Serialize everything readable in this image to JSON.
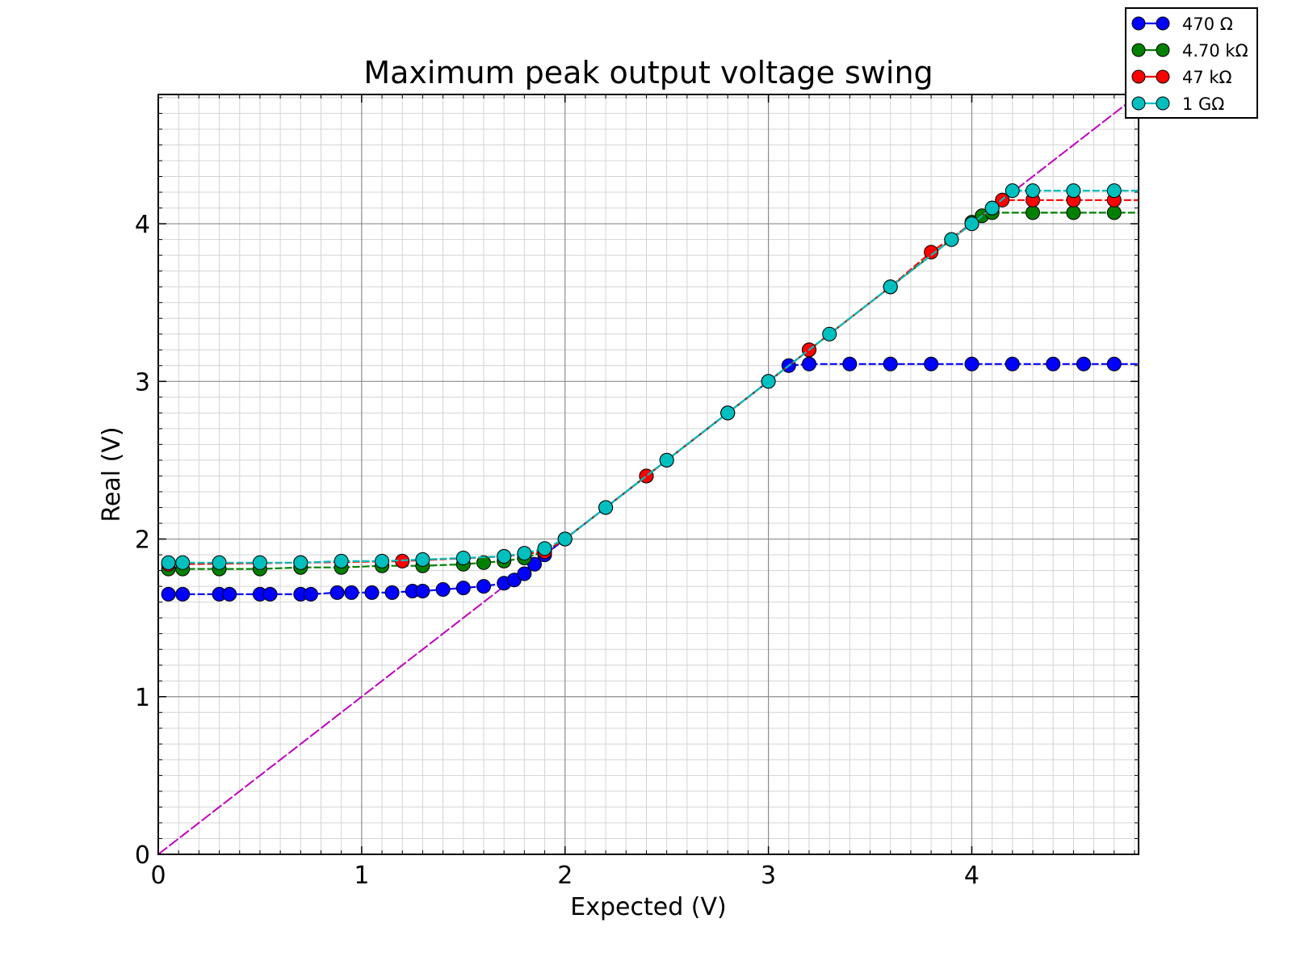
{
  "chart_data": {
    "type": "line",
    "title": "Maximum peak output voltage swing",
    "xlabel": "Expected (V)",
    "ylabel": "Real (V)",
    "xlim": [
      0,
      4.82
    ],
    "ylim": [
      0,
      4.82
    ],
    "x_ticks": [
      0,
      1,
      2,
      3,
      4
    ],
    "y_ticks": [
      0,
      1,
      2,
      3,
      4
    ],
    "x_tick_labels": [
      "0",
      "1",
      "2",
      "3",
      "4"
    ],
    "y_tick_labels": [
      "0",
      "1",
      "2",
      "3",
      "4"
    ],
    "major_grid": true,
    "minor_grid": true,
    "legend_position": "top-right, outside plot",
    "reference_line": {
      "description": "ideal y = x",
      "color": "#bf00bf",
      "style": "dashed"
    },
    "series": [
      {
        "name": "470 Ω",
        "color": "#0000ff",
        "points": [
          [
            0.05,
            1.65
          ],
          [
            0.12,
            1.65
          ],
          [
            0.3,
            1.65
          ],
          [
            0.35,
            1.65
          ],
          [
            0.5,
            1.65
          ],
          [
            0.55,
            1.65
          ],
          [
            0.7,
            1.65
          ],
          [
            0.75,
            1.65
          ],
          [
            0.88,
            1.66
          ],
          [
            0.95,
            1.66
          ],
          [
            1.05,
            1.66
          ],
          [
            1.15,
            1.66
          ],
          [
            1.25,
            1.67
          ],
          [
            1.3,
            1.67
          ],
          [
            1.4,
            1.68
          ],
          [
            1.5,
            1.69
          ],
          [
            1.6,
            1.7
          ],
          [
            1.7,
            1.72
          ],
          [
            1.75,
            1.74
          ],
          [
            1.8,
            1.78
          ],
          [
            1.85,
            1.84
          ],
          [
            1.9,
            1.9
          ],
          [
            2.0,
            2.0
          ],
          [
            2.2,
            2.2
          ],
          [
            2.5,
            2.5
          ],
          [
            2.8,
            2.8
          ],
          [
            3.0,
            3.0
          ],
          [
            3.1,
            3.1
          ],
          [
            3.2,
            3.11
          ],
          [
            3.4,
            3.11
          ],
          [
            3.6,
            3.11
          ],
          [
            3.8,
            3.11
          ],
          [
            4.0,
            3.11
          ],
          [
            4.2,
            3.11
          ],
          [
            4.4,
            3.11
          ],
          [
            4.55,
            3.11
          ],
          [
            4.7,
            3.11
          ],
          [
            4.82,
            3.11
          ]
        ]
      },
      {
        "name": "4.70 kΩ",
        "color": "#008000",
        "points": [
          [
            0.05,
            1.81
          ],
          [
            0.12,
            1.81
          ],
          [
            0.3,
            1.81
          ],
          [
            0.5,
            1.81
          ],
          [
            0.7,
            1.82
          ],
          [
            0.9,
            1.82
          ],
          [
            1.1,
            1.83
          ],
          [
            1.3,
            1.83
          ],
          [
            1.5,
            1.84
          ],
          [
            1.6,
            1.85
          ],
          [
            1.7,
            1.86
          ],
          [
            1.8,
            1.88
          ],
          [
            1.9,
            1.92
          ],
          [
            2.0,
            2.0
          ],
          [
            2.4,
            2.4
          ],
          [
            2.8,
            2.8
          ],
          [
            3.2,
            3.2
          ],
          [
            3.6,
            3.6
          ],
          [
            3.9,
            3.9
          ],
          [
            4.0,
            4.01
          ],
          [
            4.05,
            4.05
          ],
          [
            4.1,
            4.07
          ],
          [
            4.3,
            4.07
          ],
          [
            4.5,
            4.07
          ],
          [
            4.7,
            4.07
          ],
          [
            4.82,
            4.07
          ]
        ]
      },
      {
        "name": "47 kΩ",
        "color": "#ff0000",
        "points": [
          [
            0.05,
            1.84
          ],
          [
            0.7,
            1.85
          ],
          [
            1.2,
            1.86
          ],
          [
            1.7,
            1.89
          ],
          [
            1.9,
            1.92
          ],
          [
            2.0,
            2.0
          ],
          [
            2.4,
            2.4
          ],
          [
            2.8,
            2.8
          ],
          [
            3.2,
            3.2
          ],
          [
            3.6,
            3.6
          ],
          [
            3.8,
            3.82
          ],
          [
            4.0,
            4.0
          ],
          [
            4.1,
            4.1
          ],
          [
            4.15,
            4.15
          ],
          [
            4.3,
            4.15
          ],
          [
            4.5,
            4.15
          ],
          [
            4.7,
            4.15
          ],
          [
            4.82,
            4.15
          ]
        ]
      },
      {
        "name": "1 GΩ",
        "color": "#00bfbf",
        "points": [
          [
            0.05,
            1.85
          ],
          [
            0.12,
            1.85
          ],
          [
            0.3,
            1.85
          ],
          [
            0.5,
            1.85
          ],
          [
            0.7,
            1.85
          ],
          [
            0.9,
            1.86
          ],
          [
            1.1,
            1.86
          ],
          [
            1.3,
            1.87
          ],
          [
            1.5,
            1.88
          ],
          [
            1.7,
            1.89
          ],
          [
            1.8,
            1.91
          ],
          [
            1.9,
            1.94
          ],
          [
            2.0,
            2.0
          ],
          [
            2.2,
            2.2
          ],
          [
            2.5,
            2.5
          ],
          [
            2.8,
            2.8
          ],
          [
            3.0,
            3.0
          ],
          [
            3.3,
            3.3
          ],
          [
            3.6,
            3.6
          ],
          [
            3.9,
            3.9
          ],
          [
            4.0,
            4.0
          ],
          [
            4.1,
            4.1
          ],
          [
            4.2,
            4.21
          ],
          [
            4.3,
            4.21
          ],
          [
            4.5,
            4.21
          ],
          [
            4.7,
            4.21
          ],
          [
            4.82,
            4.21
          ]
        ]
      }
    ]
  }
}
